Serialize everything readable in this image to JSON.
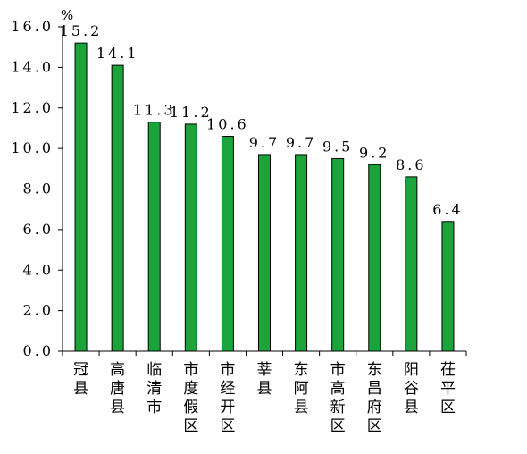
{
  "chart_data": {
    "type": "bar",
    "categories": [
      "冠县",
      "高唐县",
      "临清市",
      "市度假区",
      "市经开区",
      "莘县",
      "东阿县",
      "市高新区",
      "东昌府区",
      "阳谷县",
      "茌平区"
    ],
    "values": [
      15.2,
      14.1,
      11.3,
      11.2,
      10.6,
      9.7,
      9.7,
      9.5,
      9.2,
      8.6,
      6.4
    ],
    "value_labels": [
      "15.2",
      "14.1",
      "11.3",
      "11.2",
      "10.6",
      "9.7",
      "9.7",
      "9.5",
      "9.2",
      "8.6",
      "6.4"
    ],
    "y_ticks": [
      "0.0",
      "2.0",
      "4.0",
      "6.0",
      "8.0",
      "10.0",
      "12.0",
      "14.0",
      "16.0"
    ],
    "ylabel": "%",
    "xlabel": "",
    "title": "",
    "ylim": [
      0,
      16
    ],
    "grid": false,
    "bar_color": "#1aa43a"
  }
}
